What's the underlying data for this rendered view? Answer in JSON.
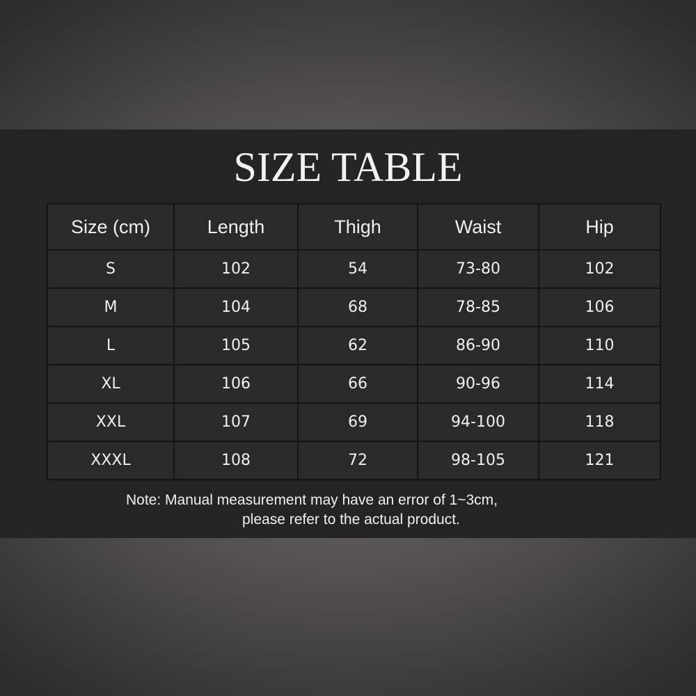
{
  "title": "SIZE TABLE",
  "table": {
    "headers": [
      "Size (cm)",
      "Length",
      "Thigh",
      "Waist",
      "Hip"
    ],
    "rows": [
      [
        "S",
        "102",
        "54",
        "73-80",
        "102"
      ],
      [
        "M",
        "104",
        "68",
        "78-85",
        "106"
      ],
      [
        "L",
        "105",
        "62",
        "86-90",
        "110"
      ],
      [
        "XL",
        "106",
        "66",
        "90-96",
        "114"
      ],
      [
        "XXL",
        "107",
        "69",
        "94-100",
        "118"
      ],
      [
        "XXXL",
        "108",
        "72",
        "98-105",
        "121"
      ]
    ]
  },
  "note": {
    "line1": "Note: Manual measurement may have an error of 1~3cm,",
    "line2": "please refer to the actual product."
  },
  "colors": {
    "band": "#242424",
    "cell": "#2a2a2a",
    "text": "#f0f0f0"
  }
}
